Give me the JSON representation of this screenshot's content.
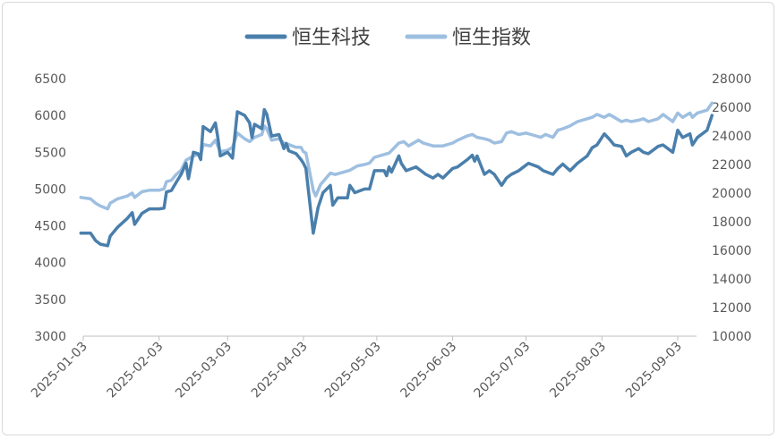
{
  "colors": {
    "hstech": "#4a7fac",
    "hsi": "#9ebfe0",
    "axis": "#bfbfbf",
    "text": "#595959"
  },
  "chart_data": {
    "type": "line",
    "title": "",
    "xlabel": "",
    "ylabel_left": "",
    "ylabel_right": "",
    "legend_position": "top-center",
    "grid": false,
    "x_ticks": [
      "2025-01-03",
      "2025-02-03",
      "2025-03-03",
      "2025-04-03",
      "2025-05-03",
      "2025-06-03",
      "2025-07-03",
      "2025-08-03",
      "2025-09-03"
    ],
    "y_left": {
      "range": [
        3000,
        6500
      ],
      "ticks": [
        "3000",
        "3500",
        "4000",
        "4500",
        "5000",
        "5500",
        "6000",
        "6500"
      ]
    },
    "y_right": {
      "range": [
        10000,
        28000
      ],
      "ticks": [
        "10000",
        "12000",
        "14000",
        "16000",
        "18000",
        "20000",
        "22000",
        "24000",
        "26000",
        "28000"
      ]
    },
    "series": [
      {
        "name": "恒生科技",
        "axis": "left",
        "points": [
          [
            "2025-01-02",
            4400
          ],
          [
            "2025-01-06",
            4400
          ],
          [
            "2025-01-08",
            4300
          ],
          [
            "2025-01-10",
            4250
          ],
          [
            "2025-01-13",
            4230
          ],
          [
            "2025-01-14",
            4360
          ],
          [
            "2025-01-17",
            4480
          ],
          [
            "2025-01-21",
            4600
          ],
          [
            "2025-01-23",
            4680
          ],
          [
            "2025-01-24",
            4520
          ],
          [
            "2025-01-27",
            4670
          ],
          [
            "2025-01-30",
            4730
          ],
          [
            "2025-02-03",
            4730
          ],
          [
            "2025-02-05",
            4740
          ],
          [
            "2025-02-06",
            4960
          ],
          [
            "2025-02-08",
            4980
          ],
          [
            "2025-02-10",
            5090
          ],
          [
            "2025-02-12",
            5200
          ],
          [
            "2025-02-14",
            5350
          ],
          [
            "2025-02-15",
            5140
          ],
          [
            "2025-02-17",
            5500
          ],
          [
            "2025-02-19",
            5480
          ],
          [
            "2025-02-20",
            5400
          ],
          [
            "2025-02-21",
            5850
          ],
          [
            "2025-02-24",
            5780
          ],
          [
            "2025-02-26",
            5900
          ],
          [
            "2025-02-27",
            5700
          ],
          [
            "2025-02-28",
            5450
          ],
          [
            "2025-03-03",
            5500
          ],
          [
            "2025-03-05",
            5420
          ],
          [
            "2025-03-07",
            6050
          ],
          [
            "2025-03-10",
            6000
          ],
          [
            "2025-03-12",
            5900
          ],
          [
            "2025-03-13",
            5700
          ],
          [
            "2025-03-14",
            5880
          ],
          [
            "2025-03-17",
            5820
          ],
          [
            "2025-03-18",
            6080
          ],
          [
            "2025-03-19",
            6020
          ],
          [
            "2025-03-21",
            5720
          ],
          [
            "2025-03-24",
            5740
          ],
          [
            "2025-03-26",
            5550
          ],
          [
            "2025-03-27",
            5620
          ],
          [
            "2025-03-28",
            5520
          ],
          [
            "2025-03-31",
            5480
          ],
          [
            "2025-04-02",
            5400
          ],
          [
            "2025-04-03",
            5350
          ],
          [
            "2025-04-04",
            5280
          ],
          [
            "2025-04-07",
            4400
          ],
          [
            "2025-04-09",
            4750
          ],
          [
            "2025-04-11",
            4950
          ],
          [
            "2025-04-14",
            5050
          ],
          [
            "2025-04-15",
            4780
          ],
          [
            "2025-04-17",
            4880
          ],
          [
            "2025-04-21",
            4880
          ],
          [
            "2025-04-22",
            5050
          ],
          [
            "2025-04-24",
            4950
          ],
          [
            "2025-04-28",
            5000
          ],
          [
            "2025-04-30",
            5000
          ],
          [
            "2025-05-02",
            5250
          ],
          [
            "2025-05-06",
            5250
          ],
          [
            "2025-05-07",
            5180
          ],
          [
            "2025-05-08",
            5300
          ],
          [
            "2025-05-09",
            5230
          ],
          [
            "2025-05-12",
            5450
          ],
          [
            "2025-05-13",
            5350
          ],
          [
            "2025-05-15",
            5250
          ],
          [
            "2025-05-19",
            5300
          ],
          [
            "2025-05-21",
            5250
          ],
          [
            "2025-05-23",
            5200
          ],
          [
            "2025-05-26",
            5150
          ],
          [
            "2025-05-28",
            5200
          ],
          [
            "2025-05-30",
            5150
          ],
          [
            "2025-06-03",
            5280
          ],
          [
            "2025-06-05",
            5300
          ],
          [
            "2025-06-09",
            5400
          ],
          [
            "2025-06-11",
            5460
          ],
          [
            "2025-06-12",
            5380
          ],
          [
            "2025-06-13",
            5450
          ],
          [
            "2025-06-16",
            5200
          ],
          [
            "2025-06-18",
            5250
          ],
          [
            "2025-06-20",
            5200
          ],
          [
            "2025-06-23",
            5050
          ],
          [
            "2025-06-25",
            5150
          ],
          [
            "2025-06-27",
            5200
          ],
          [
            "2025-06-30",
            5250
          ],
          [
            "2025-07-02",
            5300
          ],
          [
            "2025-07-04",
            5350
          ],
          [
            "2025-07-08",
            5300
          ],
          [
            "2025-07-10",
            5250
          ],
          [
            "2025-07-14",
            5200
          ],
          [
            "2025-07-16",
            5280
          ],
          [
            "2025-07-18",
            5340
          ],
          [
            "2025-07-21",
            5250
          ],
          [
            "2025-07-24",
            5350
          ],
          [
            "2025-07-28",
            5450
          ],
          [
            "2025-07-30",
            5560
          ],
          [
            "2025-08-01",
            5600
          ],
          [
            "2025-08-04",
            5750
          ],
          [
            "2025-08-06",
            5680
          ],
          [
            "2025-08-08",
            5600
          ],
          [
            "2025-08-11",
            5580
          ],
          [
            "2025-08-13",
            5450
          ],
          [
            "2025-08-15",
            5500
          ],
          [
            "2025-08-18",
            5550
          ],
          [
            "2025-08-20",
            5500
          ],
          [
            "2025-08-22",
            5480
          ],
          [
            "2025-08-26",
            5580
          ],
          [
            "2025-08-28",
            5600
          ],
          [
            "2025-09-01",
            5500
          ],
          [
            "2025-09-03",
            5800
          ],
          [
            "2025-09-05",
            5700
          ],
          [
            "2025-09-08",
            5750
          ],
          [
            "2025-09-09",
            5600
          ],
          [
            "2025-09-11",
            5700
          ],
          [
            "2025-09-15",
            5800
          ],
          [
            "2025-09-17",
            6000
          ]
        ]
      },
      {
        "name": "恒生指数",
        "axis": "right",
        "points": [
          [
            "2025-01-02",
            19700
          ],
          [
            "2025-01-06",
            19600
          ],
          [
            "2025-01-08",
            19300
          ],
          [
            "2025-01-10",
            19100
          ],
          [
            "2025-01-13",
            18900
          ],
          [
            "2025-01-14",
            19300
          ],
          [
            "2025-01-17",
            19600
          ],
          [
            "2025-01-21",
            19800
          ],
          [
            "2025-01-23",
            20000
          ],
          [
            "2025-01-24",
            19700
          ],
          [
            "2025-01-27",
            20100
          ],
          [
            "2025-01-30",
            20200
          ],
          [
            "2025-02-03",
            20200
          ],
          [
            "2025-02-05",
            20300
          ],
          [
            "2025-02-06",
            20800
          ],
          [
            "2025-02-08",
            20900
          ],
          [
            "2025-02-10",
            21300
          ],
          [
            "2025-02-12",
            21600
          ],
          [
            "2025-02-14",
            22300
          ],
          [
            "2025-02-17",
            22600
          ],
          [
            "2025-02-19",
            22700
          ],
          [
            "2025-02-20",
            22600
          ],
          [
            "2025-02-21",
            23400
          ],
          [
            "2025-02-24",
            23300
          ],
          [
            "2025-02-26",
            23700
          ],
          [
            "2025-02-27",
            23300
          ],
          [
            "2025-02-28",
            22900
          ],
          [
            "2025-03-03",
            23000
          ],
          [
            "2025-03-05",
            23200
          ],
          [
            "2025-03-07",
            24200
          ],
          [
            "2025-03-10",
            23800
          ],
          [
            "2025-03-12",
            23600
          ],
          [
            "2025-03-14",
            23900
          ],
          [
            "2025-03-17",
            24100
          ],
          [
            "2025-03-18",
            24700
          ],
          [
            "2025-03-19",
            24500
          ],
          [
            "2025-03-21",
            23700
          ],
          [
            "2025-03-24",
            23800
          ],
          [
            "2025-03-26",
            23500
          ],
          [
            "2025-03-28",
            23400
          ],
          [
            "2025-03-31",
            23200
          ],
          [
            "2025-04-02",
            23200
          ],
          [
            "2025-04-03",
            22900
          ],
          [
            "2025-04-04",
            22800
          ],
          [
            "2025-04-07",
            20200
          ],
          [
            "2025-04-08",
            19800
          ],
          [
            "2025-04-10",
            20600
          ],
          [
            "2025-04-14",
            21400
          ],
          [
            "2025-04-16",
            21300
          ],
          [
            "2025-04-18",
            21400
          ],
          [
            "2025-04-22",
            21600
          ],
          [
            "2025-04-25",
            21900
          ],
          [
            "2025-04-28",
            22000
          ],
          [
            "2025-04-30",
            22100
          ],
          [
            "2025-05-02",
            22500
          ],
          [
            "2025-05-06",
            22700
          ],
          [
            "2025-05-08",
            22800
          ],
          [
            "2025-05-12",
            23500
          ],
          [
            "2025-05-14",
            23600
          ],
          [
            "2025-05-16",
            23300
          ],
          [
            "2025-05-20",
            23700
          ],
          [
            "2025-05-22",
            23500
          ],
          [
            "2025-05-26",
            23300
          ],
          [
            "2025-05-30",
            23300
          ],
          [
            "2025-06-03",
            23500
          ],
          [
            "2025-06-05",
            23700
          ],
          [
            "2025-06-09",
            24000
          ],
          [
            "2025-06-11",
            24100
          ],
          [
            "2025-06-13",
            23900
          ],
          [
            "2025-06-16",
            23800
          ],
          [
            "2025-06-18",
            23700
          ],
          [
            "2025-06-20",
            23500
          ],
          [
            "2025-06-23",
            23600
          ],
          [
            "2025-06-25",
            24200
          ],
          [
            "2025-06-27",
            24300
          ],
          [
            "2025-06-30",
            24100
          ],
          [
            "2025-07-03",
            24200
          ],
          [
            "2025-07-07",
            24000
          ],
          [
            "2025-07-09",
            23900
          ],
          [
            "2025-07-11",
            24100
          ],
          [
            "2025-07-14",
            23900
          ],
          [
            "2025-07-16",
            24400
          ],
          [
            "2025-07-18",
            24500
          ],
          [
            "2025-07-21",
            24700
          ],
          [
            "2025-07-24",
            25000
          ],
          [
            "2025-07-28",
            25200
          ],
          [
            "2025-07-30",
            25300
          ],
          [
            "2025-08-01",
            25500
          ],
          [
            "2025-08-04",
            25300
          ],
          [
            "2025-08-06",
            25500
          ],
          [
            "2025-08-08",
            25300
          ],
          [
            "2025-08-11",
            25000
          ],
          [
            "2025-08-13",
            25100
          ],
          [
            "2025-08-15",
            25000
          ],
          [
            "2025-08-18",
            25100
          ],
          [
            "2025-08-20",
            25200
          ],
          [
            "2025-08-22",
            25000
          ],
          [
            "2025-08-26",
            25200
          ],
          [
            "2025-08-28",
            25500
          ],
          [
            "2025-09-01",
            25000
          ],
          [
            "2025-09-03",
            25600
          ],
          [
            "2025-09-05",
            25300
          ],
          [
            "2025-09-08",
            25600
          ],
          [
            "2025-09-09",
            25300
          ],
          [
            "2025-09-11",
            25600
          ],
          [
            "2025-09-15",
            25800
          ],
          [
            "2025-09-17",
            26300
          ]
        ]
      }
    ]
  }
}
